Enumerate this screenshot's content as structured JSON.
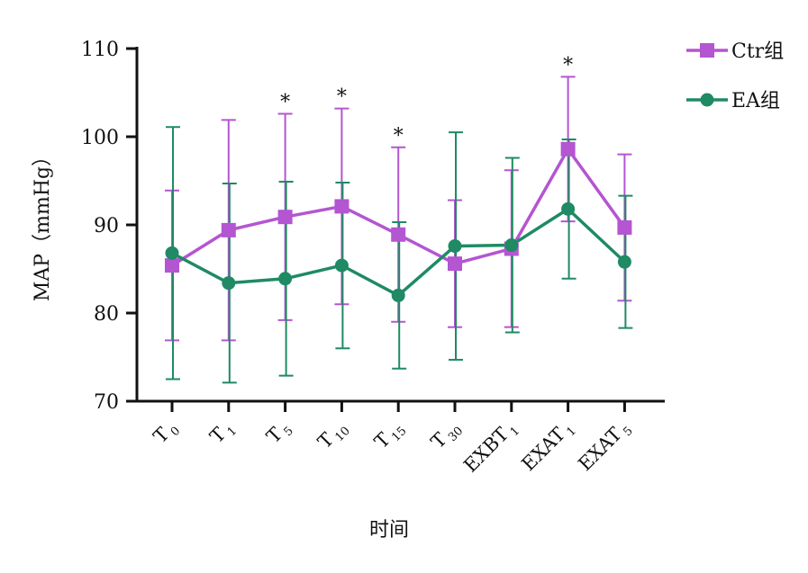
{
  "chart_data": {
    "type": "line",
    "ylabel": "MAP（mmHg）",
    "xlabel": "时间",
    "ylim": [
      70,
      110
    ],
    "yticks": [
      70,
      80,
      90,
      100,
      110
    ],
    "categories": [
      {
        "main": "T",
        "sub": "0"
      },
      {
        "main": "T",
        "sub": "1"
      },
      {
        "main": "T",
        "sub": "5"
      },
      {
        "main": "T",
        "sub": "10"
      },
      {
        "main": "T",
        "sub": "15"
      },
      {
        "main": "T",
        "sub": "30"
      },
      {
        "main": "EXBT",
        "sub": "1"
      },
      {
        "main": "EXAT",
        "sub": "1"
      },
      {
        "main": "EXAT",
        "sub": "5"
      }
    ],
    "series": [
      {
        "name": "Ctr组",
        "color": "#b455d2",
        "marker": "square",
        "values": [
          85.4,
          89.4,
          90.9,
          92.1,
          88.9,
          85.6,
          87.3,
          98.6,
          89.7
        ],
        "error": [
          8.5,
          12.5,
          11.7,
          11.1,
          9.9,
          7.2,
          8.9,
          8.2,
          8.3
        ]
      },
      {
        "name": "EA组",
        "color": "#1f8a63",
        "marker": "circle",
        "values": [
          86.8,
          83.4,
          83.9,
          85.4,
          82.0,
          87.6,
          87.7,
          91.8,
          85.8
        ],
        "error": [
          14.3,
          11.3,
          11.0,
          9.4,
          8.3,
          12.9,
          9.9,
          7.9,
          7.5
        ]
      }
    ],
    "significance": {
      "symbol": "*",
      "indices": [
        2,
        3,
        4,
        7
      ]
    },
    "legend": "top-right"
  }
}
